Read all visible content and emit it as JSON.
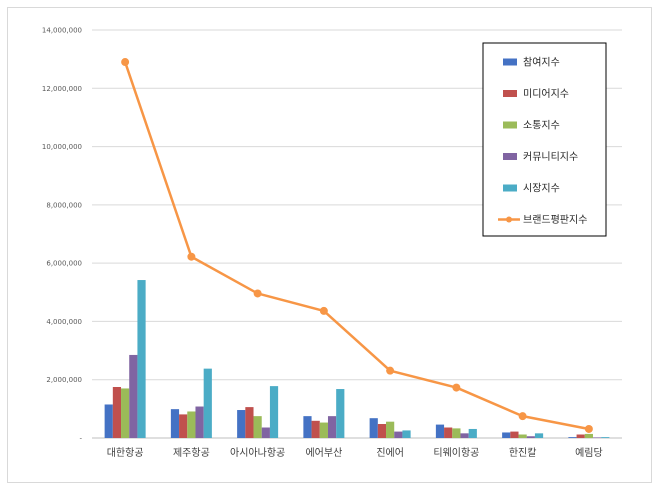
{
  "chart_data": {
    "type": "bar",
    "categories": [
      "대한항공",
      "제주항공",
      "아시아나항공",
      "에어부산",
      "진에어",
      "티웨이항공",
      "한진칼",
      "예림당"
    ],
    "ylim": [
      0,
      14000000
    ],
    "yticks": [
      "-",
      "2,000,000",
      "4,000,000",
      "6,000,000",
      "8,000,000",
      "10,000,000",
      "12,000,000",
      "14,000,000"
    ],
    "ytick_values": [
      0,
      2000000,
      4000000,
      6000000,
      8000000,
      10000000,
      12000000,
      14000000
    ],
    "grid": true,
    "legend_position": "top-right",
    "series": [
      {
        "name": "참여지수",
        "kind": "bar",
        "color": "#4472C4",
        "values": [
          1150000,
          990000,
          960000,
          750000,
          680000,
          460000,
          190000,
          30000
        ]
      },
      {
        "name": "미디어지수",
        "kind": "bar",
        "color": "#C0504D",
        "values": [
          1750000,
          810000,
          1060000,
          590000,
          480000,
          360000,
          220000,
          120000
        ]
      },
      {
        "name": "소통지수",
        "kind": "bar",
        "color": "#9BBB59",
        "values": [
          1700000,
          910000,
          750000,
          530000,
          560000,
          330000,
          120000,
          140000
        ]
      },
      {
        "name": "커뮤니티지수",
        "kind": "bar",
        "color": "#8064A2",
        "values": [
          2850000,
          1080000,
          360000,
          750000,
          220000,
          160000,
          60000,
          20000
        ]
      },
      {
        "name": "시장지수",
        "kind": "bar",
        "color": "#4BACC6",
        "values": [
          5420000,
          2380000,
          1780000,
          1680000,
          260000,
          310000,
          160000,
          30000
        ]
      },
      {
        "name": "브랜드평판지수",
        "kind": "line",
        "color": "#F79646",
        "values": [
          12900000,
          6220000,
          4960000,
          4360000,
          2310000,
          1730000,
          750000,
          310000
        ]
      }
    ]
  }
}
